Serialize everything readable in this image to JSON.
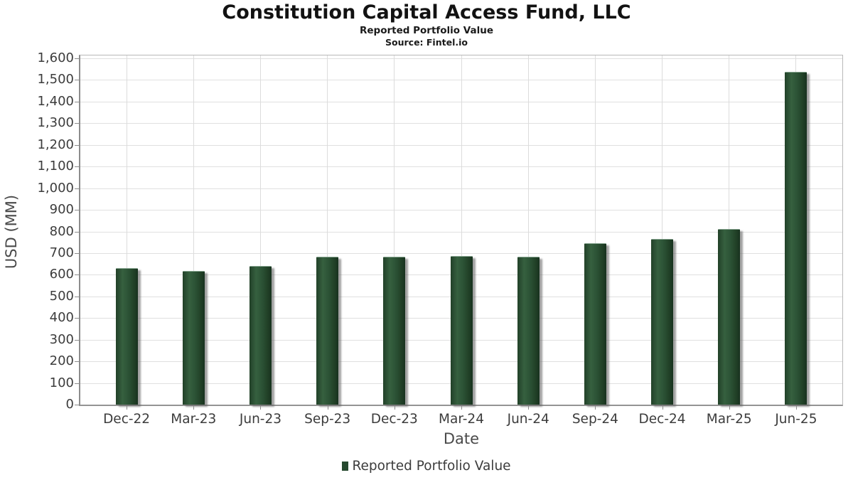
{
  "chart_data": {
    "type": "bar",
    "title": "Constitution Capital Access Fund, LLC",
    "subtitle": "Reported Portfolio Value",
    "source": "Source: Fintel.io",
    "xlabel": "Date",
    "ylabel": "USD (MM)",
    "categories": [
      "Dec-22",
      "Mar-23",
      "Jun-23",
      "Sep-23",
      "Dec-23",
      "Mar-24",
      "Jun-24",
      "Sep-24",
      "Dec-24",
      "Mar-25",
      "Jun-25"
    ],
    "series": [
      {
        "name": "Reported Portfolio Value",
        "values": [
          627,
          615,
          638,
          680,
          680,
          684,
          680,
          744,
          761,
          808,
          1533
        ]
      }
    ],
    "ylim": [
      0,
      1600
    ],
    "ytick_step": 100,
    "grid": true,
    "legend_position": "bottom",
    "colors": {
      "bar_main": "#2c5336",
      "bar_dark_edge": "#18321f",
      "bar_light_band": "#36603f",
      "bar_shadow": "#696969",
      "legend_marker": "#26492f",
      "gridline": "#e0e0e0",
      "axis_line": "#8c8c8c",
      "tick_text": "#3c3c3c",
      "title_text": "#121212"
    }
  }
}
